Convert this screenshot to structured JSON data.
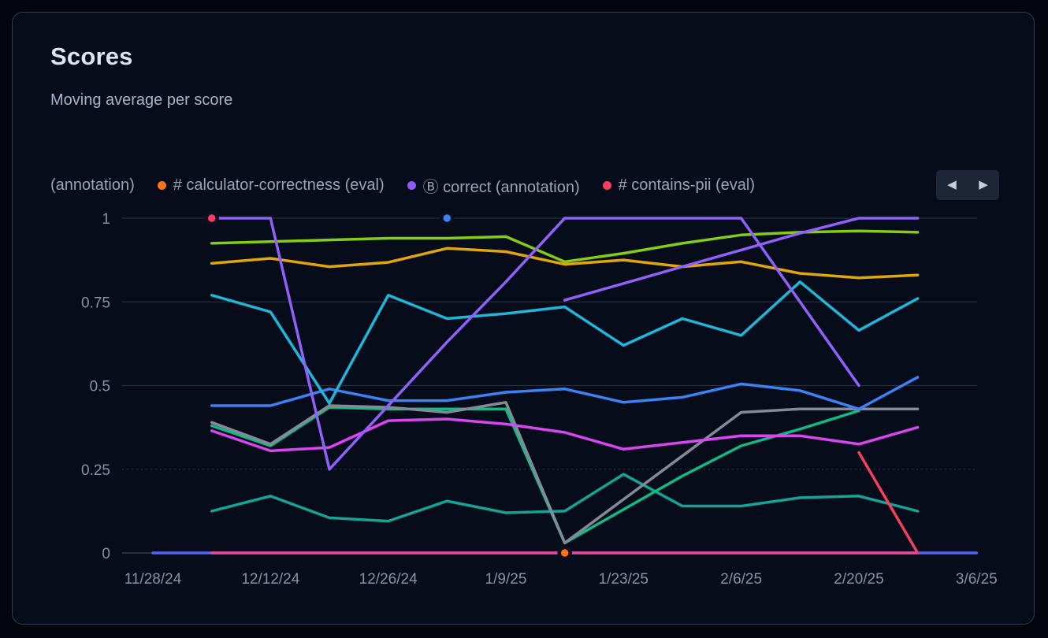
{
  "panel": {
    "title": "Scores",
    "subtitle": "Moving average per score"
  },
  "legend": {
    "items": [
      {
        "label": "(annotation)",
        "color": ""
      },
      {
        "label": "# calculator-correctness (eval)",
        "color": "#f97316"
      },
      {
        "label": "Ⓑ correct (annotation)",
        "color": "#8b5cf6"
      },
      {
        "label": "# contains-pii (eval)",
        "color": "#f43f5e"
      }
    ],
    "nav": {
      "prev": "◀",
      "next": "▶"
    }
  },
  "chart_data": {
    "type": "line",
    "title": "Scores",
    "subtitle": "Moving average per score",
    "xlabel": "",
    "ylabel": "",
    "ylim": [
      0,
      1
    ],
    "yticks": [
      0,
      0.25,
      0.5,
      0.75,
      1
    ],
    "ytick_labels": [
      "0",
      "0.25",
      "0.5",
      "0.75",
      "1"
    ],
    "xtick_labels": [
      "11/28/24",
      "12/12/24",
      "12/26/24",
      "1/9/25",
      "1/23/25",
      "2/6/25",
      "2/20/25",
      "3/6/25"
    ],
    "grid": "horizontal",
    "x_dates": [
      "12/5/24",
      "12/12/24",
      "12/19/24",
      "12/26/24",
      "1/2/25",
      "1/9/25",
      "1/16/25",
      "1/23/25",
      "1/30/25",
      "2/6/25",
      "2/13/25",
      "2/20/25",
      "2/27/25"
    ],
    "series": [
      {
        "name": "series (indigo)",
        "color": "#5865f2",
        "dates": [
          "11/28/24",
          "3/6/25"
        ],
        "values": [
          0,
          0
        ]
      },
      {
        "name": "series (pink)",
        "color": "#ec4899",
        "values": [
          0,
          0,
          0,
          0,
          0,
          0,
          0,
          0,
          0,
          0,
          0,
          0,
          0
        ]
      },
      {
        "name": "series (teal)",
        "color": "#14a396",
        "values": [
          0.125,
          0.17,
          0.105,
          0.095,
          0.155,
          0.12,
          0.125,
          0.235,
          0.14,
          0.14,
          0.165,
          0.17,
          0.125
        ]
      },
      {
        "name": "series (emerald)",
        "color": "#12b886",
        "values": [
          0.38,
          0.32,
          0.435,
          0.43,
          0.43,
          0.43,
          0.03,
          0.13,
          0.23,
          0.32,
          0.37,
          0.425,
          null
        ]
      },
      {
        "name": "series (gray)",
        "color": "#848b98",
        "values": [
          0.39,
          0.325,
          0.44,
          0.435,
          0.42,
          0.45,
          0.03,
          0.16,
          0.29,
          0.42,
          0.43,
          0.43,
          0.43
        ]
      },
      {
        "name": "series (magenta)",
        "color": "#d946ef",
        "values": [
          0.365,
          0.305,
          0.315,
          0.395,
          0.4,
          0.385,
          0.36,
          0.31,
          0.33,
          0.35,
          0.35,
          0.325,
          0.375
        ]
      },
      {
        "name": "series (blue)",
        "color": "#3b82f6",
        "values": [
          0.44,
          0.44,
          0.49,
          0.455,
          0.455,
          0.48,
          0.49,
          0.45,
          0.465,
          0.505,
          0.485,
          0.43,
          0.525
        ]
      },
      {
        "name": "series (cyan)",
        "color": "#1fb6d8",
        "values": [
          0.77,
          0.72,
          0.447,
          0.77,
          0.7,
          0.715,
          0.735,
          0.62,
          0.7,
          0.65,
          0.81,
          0.665,
          0.76
        ]
      },
      {
        "name": "series (gold)",
        "color": "#e0a60b",
        "values": [
          0.865,
          0.88,
          0.855,
          0.868,
          0.91,
          0.9,
          0.862,
          0.875,
          0.855,
          0.87,
          0.835,
          0.822,
          0.83
        ]
      },
      {
        "name": "series (lime)",
        "color": "#84cc16",
        "values": [
          0.925,
          0.93,
          0.935,
          0.94,
          0.94,
          0.945,
          0.87,
          0.895,
          0.925,
          0.95,
          0.958,
          0.962,
          0.958
        ]
      },
      {
        "name": "series (purple-2)",
        "color": "#9061f9",
        "values": [
          null,
          null,
          null,
          null,
          null,
          null,
          0.755,
          0.805,
          0.855,
          0.905,
          0.955,
          1,
          1
        ]
      },
      {
        "name": "Ⓑ correct (annotation)",
        "color": "#9061f9",
        "values": [
          1,
          1,
          0.25,
          0.44,
          0.63,
          0.81,
          1,
          1,
          1,
          1,
          0.75,
          0.5,
          null
        ]
      },
      {
        "name": "# contains-pii (eval)",
        "color": "#f43f5e",
        "values": [
          null,
          null,
          null,
          null,
          null,
          null,
          null,
          null,
          null,
          null,
          null,
          0.3,
          0
        ]
      }
    ],
    "point_markers": [
      {
        "series": "# contains-pii (eval)",
        "date": "12/5/24",
        "value": 1,
        "color": "#f43f5e"
      },
      {
        "series": "series (blue)",
        "date": "1/2/25",
        "value": 1,
        "color": "#3b82f6"
      },
      {
        "series": "# calculator-correctness (eval)",
        "date": "1/16/25",
        "value": 0,
        "color": "#f97316"
      }
    ],
    "legend_position": "top"
  }
}
